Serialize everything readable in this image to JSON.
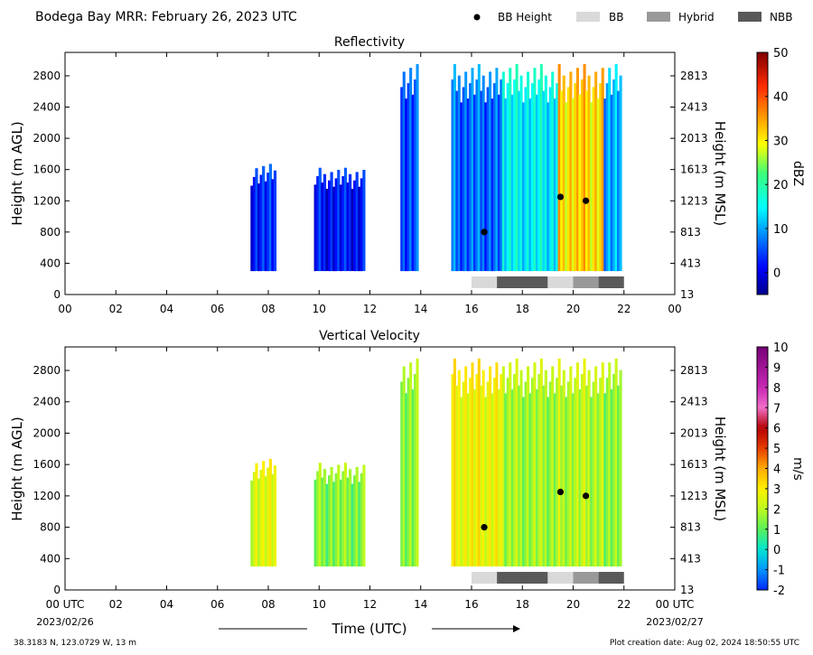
{
  "figure": {
    "title": "Bodega Bay MRR:  February 26, 2023 UTC",
    "legend": [
      {
        "label": "BB Height",
        "kind": "dot",
        "color": "#000000"
      },
      {
        "label": "BB",
        "kind": "swatch",
        "color": "#d9d9d9"
      },
      {
        "label": "Hybrid",
        "kind": "swatch",
        "color": "#999999"
      },
      {
        "label": "NBB",
        "kind": "swatch",
        "color": "#595959"
      }
    ],
    "xlabel": "Time (UTC)",
    "start_date": "2023/02/26",
    "end_date": "2023/02/27",
    "location": "38.3183 N, 123.0729 W, 13 m",
    "creation": "Plot creation date: Aug 02, 2024 18:50:55 UTC"
  },
  "chart_data": [
    {
      "type": "heatmap",
      "title": "Reflectivity",
      "ylabel": "Height (m AGL)",
      "ylabel_right": "Height (m MSL)",
      "xlim": [
        0,
        24
      ],
      "ylim": [
        0,
        3100
      ],
      "x_ticks": [
        "00",
        "02",
        "04",
        "06",
        "08",
        "10",
        "12",
        "14",
        "16",
        "18",
        "20",
        "22",
        "00"
      ],
      "y_ticks": [
        0,
        400,
        800,
        1200,
        1600,
        2000,
        2400,
        2800
      ],
      "y_ticks_right": [
        "13",
        "413",
        "813",
        "1213",
        "1613",
        "2013",
        "2413",
        "2813"
      ],
      "colorbar": {
        "label": "dBZ",
        "min": -5,
        "max": 50,
        "ticks": [
          0,
          10,
          20,
          30,
          40,
          50
        ]
      },
      "bb_height": [
        {
          "x": 16.5,
          "y": 800
        },
        {
          "x": 19.5,
          "y": 1250
        },
        {
          "x": 20.5,
          "y": 1200
        }
      ],
      "bb_classification": [
        {
          "start": 16.0,
          "end": 17.0,
          "type": "BB"
        },
        {
          "start": 17.0,
          "end": 19.0,
          "type": "NBB"
        },
        {
          "start": 19.0,
          "end": 20.0,
          "type": "BB"
        },
        {
          "start": 20.0,
          "end": 21.0,
          "type": "Hybrid"
        },
        {
          "start": 21.0,
          "end": 22.0,
          "type": "NBB"
        }
      ],
      "echo_regions": [
        {
          "start": 7.3,
          "end": 8.3,
          "top": 1700,
          "value": 3
        },
        {
          "start": 9.8,
          "end": 11.8,
          "top": 1650,
          "value": 2
        },
        {
          "start": 13.2,
          "end": 13.9,
          "top": 3000,
          "value": 5
        },
        {
          "start": 15.2,
          "end": 17.2,
          "top": 3000,
          "value": 7
        },
        {
          "start": 17.2,
          "end": 19.4,
          "top": 3000,
          "value": 15
        },
        {
          "start": 19.4,
          "end": 21.2,
          "top": 3000,
          "value": 32
        },
        {
          "start": 21.2,
          "end": 21.9,
          "top": 3000,
          "value": 10
        }
      ]
    },
    {
      "type": "heatmap",
      "title": "Vertical Velocity",
      "ylabel": "Height (m AGL)",
      "ylabel_right": "Height (m MSL)",
      "xlim": [
        0,
        24
      ],
      "ylim": [
        0,
        3100
      ],
      "x_ticks": [
        "00 UTC",
        "02",
        "04",
        "06",
        "08",
        "10",
        "12",
        "14",
        "16",
        "18",
        "20",
        "22",
        "00 UTC"
      ],
      "y_ticks": [
        0,
        400,
        800,
        1200,
        1600,
        2000,
        2400,
        2800
      ],
      "y_ticks_right": [
        "13",
        "413",
        "813",
        "1213",
        "1613",
        "2013",
        "2413",
        "2813"
      ],
      "colorbar": {
        "label": "m/s",
        "min": -2,
        "max": 10,
        "ticks": [
          "-2",
          "-1",
          "0",
          "1",
          "2",
          "3",
          "4",
          "5",
          "6",
          "7",
          "8",
          "9",
          "10"
        ]
      },
      "bb_height": [
        {
          "x": 16.5,
          "y": 800
        },
        {
          "x": 19.5,
          "y": 1250
        },
        {
          "x": 20.5,
          "y": 1200
        }
      ],
      "bb_classification": [
        {
          "start": 16.0,
          "end": 17.0,
          "type": "BB"
        },
        {
          "start": 17.0,
          "end": 19.0,
          "type": "NBB"
        },
        {
          "start": 19.0,
          "end": 20.0,
          "type": "BB"
        },
        {
          "start": 20.0,
          "end": 21.0,
          "type": "Hybrid"
        },
        {
          "start": 21.0,
          "end": 22.0,
          "type": "NBB"
        }
      ],
      "echo_regions": [
        {
          "start": 7.3,
          "end": 8.3,
          "top": 1700,
          "value": 2.5
        },
        {
          "start": 9.8,
          "end": 11.8,
          "top": 1650,
          "value": 1.5
        },
        {
          "start": 13.2,
          "end": 13.9,
          "top": 3000,
          "value": 1.5
        },
        {
          "start": 15.2,
          "end": 17.2,
          "top": 3000,
          "value": 2.8
        },
        {
          "start": 17.2,
          "end": 19.4,
          "top": 3000,
          "value": 1.8
        },
        {
          "start": 19.4,
          "end": 21.2,
          "top": 3000,
          "value": 2.0
        },
        {
          "start": 21.2,
          "end": 21.9,
          "top": 3000,
          "value": 1.5
        }
      ]
    }
  ]
}
